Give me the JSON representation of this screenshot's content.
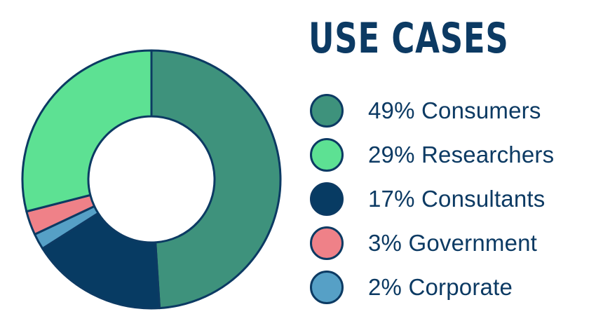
{
  "title": "USE CASES",
  "outline_color": "#0c3a63",
  "legend": [
    {
      "label": "49% Consumers",
      "color": "#3e927c",
      "icon": "circle-swatch"
    },
    {
      "label": "29% Researchers",
      "color": "#5de193",
      "icon": "circle-swatch"
    },
    {
      "label": "17% Consultants",
      "color": "#073b63",
      "icon": "circle-swatch"
    },
    {
      "label": "3% Government",
      "color": "#ef8188",
      "icon": "circle-swatch"
    },
    {
      "label": "2% Corporate",
      "color": "#56a0c6",
      "icon": "circle-swatch"
    }
  ],
  "chart_data": {
    "type": "pie",
    "donut": true,
    "title": "USE CASES",
    "start": "12 o'clock, clockwise",
    "categories": [
      "Consumers",
      "Researchers",
      "Consultants",
      "Government",
      "Corporate"
    ],
    "values": [
      49,
      29,
      17,
      3,
      2
    ],
    "order_clockwise": [
      "Consumers",
      "Consultants",
      "Corporate",
      "Government",
      "Researchers"
    ],
    "colors": {
      "Consumers": "#3e927c",
      "Researchers": "#5de193",
      "Consultants": "#073b63",
      "Government": "#ef8188",
      "Corporate": "#56a0c6"
    },
    "legend_position": "right"
  }
}
